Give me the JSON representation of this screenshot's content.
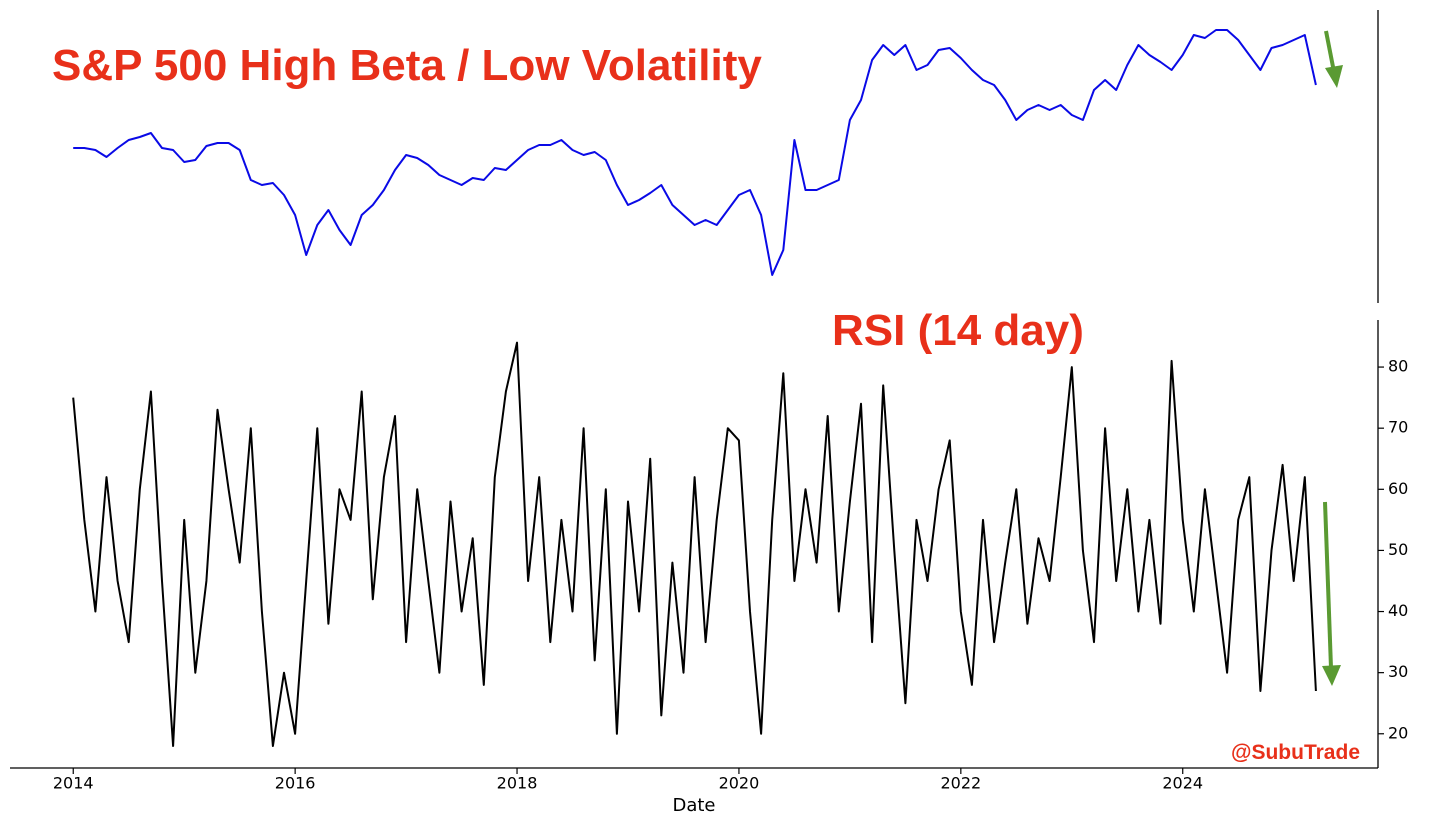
{
  "chart_data": [
    {
      "type": "line",
      "title": "S&P 500 High Beta / Low Volatility",
      "x": [
        2014.0,
        2014.1,
        2014.2,
        2014.3,
        2014.4,
        2014.5,
        2014.6,
        2014.7,
        2014.8,
        2014.9,
        2015.0,
        2015.1,
        2015.2,
        2015.3,
        2015.4,
        2015.5,
        2015.6,
        2015.7,
        2015.8,
        2015.9,
        2016.0,
        2016.1,
        2016.2,
        2016.3,
        2016.4,
        2016.5,
        2016.6,
        2016.7,
        2016.8,
        2016.9,
        2017.0,
        2017.1,
        2017.2,
        2017.3,
        2017.4,
        2017.5,
        2017.6,
        2017.7,
        2017.8,
        2017.9,
        2018.0,
        2018.1,
        2018.2,
        2018.3,
        2018.4,
        2018.5,
        2018.6,
        2018.7,
        2018.8,
        2018.9,
        2019.0,
        2019.1,
        2019.2,
        2019.3,
        2019.4,
        2019.5,
        2019.6,
        2019.7,
        2019.8,
        2019.9,
        2020.0,
        2020.1,
        2020.2,
        2020.3,
        2020.4,
        2020.5,
        2020.6,
        2020.7,
        2020.8,
        2020.9,
        2021.0,
        2021.1,
        2021.2,
        2021.3,
        2021.4,
        2021.5,
        2021.6,
        2021.7,
        2021.8,
        2021.9,
        2022.0,
        2022.1,
        2022.2,
        2022.3,
        2022.4,
        2022.5,
        2022.6,
        2022.7,
        2022.8,
        2022.9,
        2023.0,
        2023.1,
        2023.2,
        2023.3,
        2023.4,
        2023.5,
        2023.6,
        2023.7,
        2023.8,
        2023.9,
        2024.0,
        2024.1,
        2024.2,
        2024.3,
        2024.4,
        2024.5,
        2024.6,
        2024.7,
        2024.8,
        2024.9,
        2025.0,
        2025.1,
        2025.2
      ],
      "series": [
        {
          "color": "#0a0ae6",
          "values": [
            155,
            155,
            153,
            146,
            155,
            163,
            166,
            170,
            155,
            153,
            141,
            143,
            157,
            160,
            160,
            153,
            123,
            118,
            120,
            108,
            88,
            48,
            78,
            93,
            73,
            58,
            88,
            98,
            113,
            133,
            148,
            145,
            138,
            128,
            123,
            118,
            125,
            123,
            135,
            133,
            143,
            153,
            158,
            158,
            163,
            153,
            148,
            151,
            143,
            118,
            98,
            103,
            110,
            118,
            98,
            88,
            78,
            83,
            78,
            93,
            108,
            113,
            88,
            28,
            53,
            163,
            113,
            113,
            118,
            123,
            183,
            203,
            243,
            258,
            248,
            258,
            233,
            238,
            253,
            255,
            245,
            233,
            223,
            218,
            203,
            183,
            193,
            198,
            193,
            198,
            188,
            183,
            213,
            223,
            213,
            238,
            258,
            248,
            241,
            233,
            248,
            268,
            265,
            273,
            273,
            263,
            248,
            233,
            255,
            258,
            263,
            268,
            218
          ]
        }
      ],
      "xlim": [
        2013.43,
        2025.76
      ],
      "ylim": [
        0,
        293
      ]
    },
    {
      "type": "line",
      "title": "RSI (14 day)",
      "annotation": "@SubuTrade",
      "xlabel": "Date",
      "x": [
        2014.0,
        2014.1,
        2014.2,
        2014.3,
        2014.4,
        2014.5,
        2014.6,
        2014.7,
        2014.8,
        2014.9,
        2015.0,
        2015.1,
        2015.2,
        2015.3,
        2015.4,
        2015.5,
        2015.6,
        2015.7,
        2015.8,
        2015.9,
        2016.0,
        2016.1,
        2016.2,
        2016.3,
        2016.4,
        2016.5,
        2016.6,
        2016.7,
        2016.8,
        2016.9,
        2017.0,
        2017.1,
        2017.2,
        2017.3,
        2017.4,
        2017.5,
        2017.6,
        2017.7,
        2017.8,
        2017.9,
        2018.0,
        2018.1,
        2018.2,
        2018.3,
        2018.4,
        2018.5,
        2018.6,
        2018.7,
        2018.8,
        2018.9,
        2019.0,
        2019.1,
        2019.2,
        2019.3,
        2019.4,
        2019.5,
        2019.6,
        2019.7,
        2019.8,
        2019.9,
        2020.0,
        2020.1,
        2020.2,
        2020.3,
        2020.4,
        2020.5,
        2020.6,
        2020.7,
        2020.8,
        2020.9,
        2021.0,
        2021.1,
        2021.2,
        2021.3,
        2021.4,
        2021.5,
        2021.6,
        2021.7,
        2021.8,
        2021.9,
        2022.0,
        2022.1,
        2022.2,
        2022.3,
        2022.4,
        2022.5,
        2022.6,
        2022.7,
        2022.8,
        2022.9,
        2023.0,
        2023.1,
        2023.2,
        2023.3,
        2023.4,
        2023.5,
        2023.6,
        2023.7,
        2023.8,
        2023.9,
        2024.0,
        2024.1,
        2024.2,
        2024.3,
        2024.4,
        2024.5,
        2024.6,
        2024.7,
        2024.8,
        2024.9,
        2025.0,
        2025.1,
        2025.2
      ],
      "series": [
        {
          "color": "#000000",
          "values": [
            75,
            55,
            40,
            62,
            45,
            35,
            60,
            76,
            45,
            18,
            55,
            30,
            45,
            73,
            60,
            48,
            70,
            40,
            18,
            30,
            20,
            45,
            70,
            38,
            60,
            55,
            76,
            42,
            62,
            72,
            35,
            60,
            45,
            30,
            58,
            40,
            52,
            28,
            62,
            76,
            84,
            45,
            62,
            35,
            55,
            40,
            70,
            32,
            60,
            20,
            58,
            40,
            65,
            23,
            48,
            30,
            62,
            35,
            55,
            70,
            68,
            40,
            20,
            55,
            79,
            45,
            60,
            48,
            72,
            40,
            58,
            74,
            35,
            77,
            50,
            25,
            55,
            45,
            60,
            68,
            40,
            28,
            55,
            35,
            48,
            60,
            38,
            52,
            45,
            62,
            80,
            50,
            35,
            70,
            45,
            60,
            40,
            55,
            38,
            81,
            55,
            40,
            60,
            45,
            30,
            55,
            62,
            27,
            50,
            64,
            45,
            62,
            27
          ]
        }
      ],
      "xlim": [
        2013.43,
        2025.76
      ],
      "ylim": [
        14.4,
        87.7
      ],
      "xticks": [
        2014,
        2016,
        2018,
        2020,
        2022,
        2024
      ],
      "yticks": [
        20,
        30,
        40,
        50,
        60,
        70,
        80
      ]
    }
  ]
}
